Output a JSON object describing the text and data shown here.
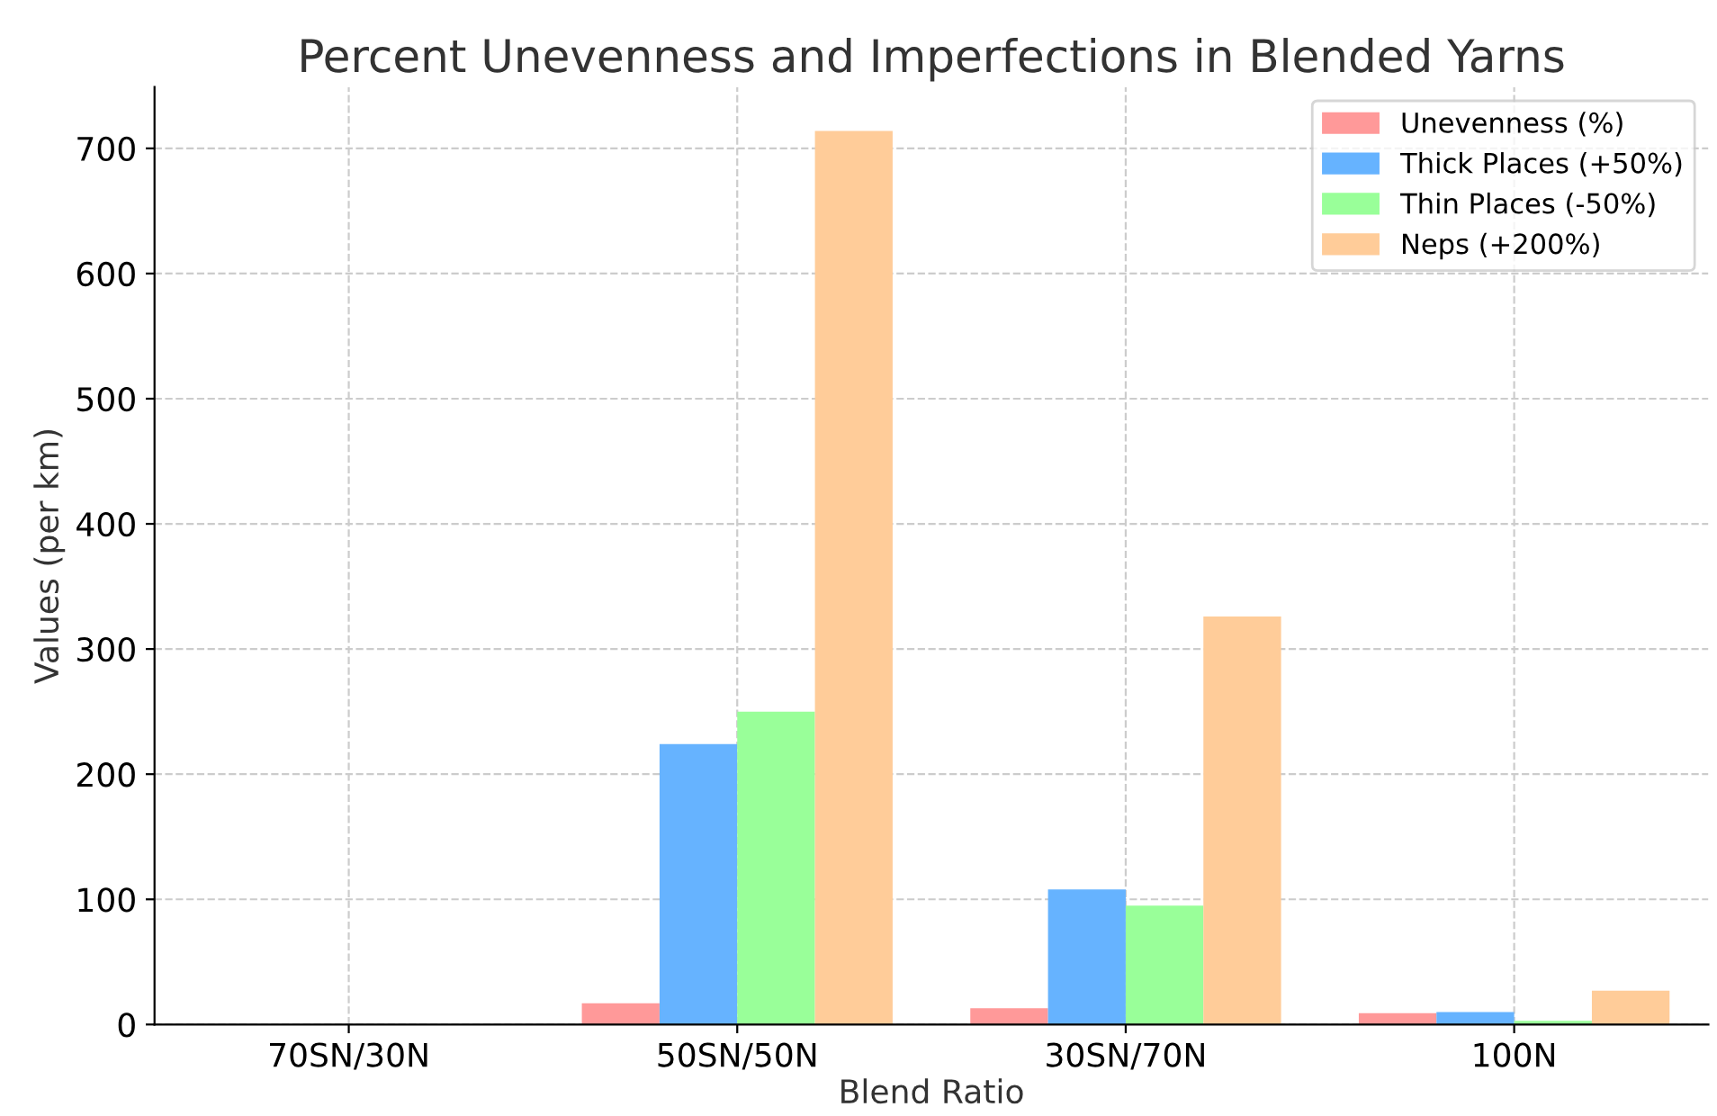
{
  "chart_data": {
    "type": "bar",
    "title": "Percent Unevenness and Imperfections in Blended Yarns",
    "xlabel": "Blend Ratio",
    "ylabel": "Values (per km)",
    "categories": [
      "70SN/30N",
      "50SN/50N",
      "30SN/70N",
      "100N"
    ],
    "series": [
      {
        "name": "Unevenness (%)",
        "color": "#ff9999",
        "values": [
          0,
          17,
          13,
          9
        ]
      },
      {
        "name": "Thick Places (+50%)",
        "color": "#66b3ff",
        "values": [
          0,
          224,
          108,
          10
        ]
      },
      {
        "name": "Thin Places (-50%)",
        "color": "#99ff99",
        "values": [
          0,
          250,
          95,
          3
        ]
      },
      {
        "name": "Neps (+200%)",
        "color": "#ffcc99",
        "values": [
          0,
          714,
          326,
          27
        ]
      }
    ],
    "ylim": [
      0,
      749
    ],
    "yticks": [
      0,
      100,
      200,
      300,
      400,
      500,
      600,
      700
    ],
    "grid": true,
    "legend": "top right"
  }
}
